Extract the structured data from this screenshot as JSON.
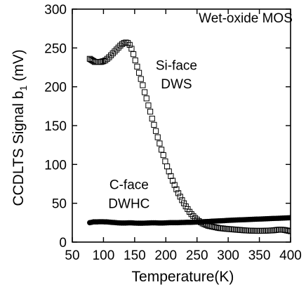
{
  "chart_data": {
    "type": "scatter",
    "title": "",
    "xlabel": "Temperature(K)",
    "ylabel": "CCDLTS Signal b",
    "ylabel_subscript": "1",
    "ylabel_unit": " (mV)",
    "xlim": [
      50,
      400
    ],
    "ylim": [
      0,
      300
    ],
    "xticks": [
      50,
      100,
      150,
      200,
      250,
      300,
      350,
      400
    ],
    "yticks": [
      0,
      50,
      100,
      150,
      200,
      250,
      300
    ],
    "xtick_labels": [
      "50",
      "100",
      "150",
      "200",
      "250",
      "300",
      "350",
      "400"
    ],
    "ytick_labels": [
      "0",
      "50",
      "100",
      "150",
      "200",
      "250",
      "300"
    ],
    "grid": false,
    "annotations": [
      {
        "text": "Wet-oxide MOS",
        "x": 328,
        "y": 283
      },
      {
        "text": "Si-face",
        "x": 217,
        "y": 222
      },
      {
        "text": "DWS",
        "x": 217,
        "y": 198
      },
      {
        "text": "C-face",
        "x": 141,
        "y": 68
      },
      {
        "text": "DWHC",
        "x": 141,
        "y": 44
      }
    ],
    "series": [
      {
        "name": "",
        "marker": "open-square",
        "x": [
          78,
          80,
          82,
          84,
          86,
          88,
          90,
          92,
          94,
          96,
          98,
          100,
          103,
          106,
          109,
          112,
          115,
          118,
          121,
          124,
          127,
          130,
          133,
          136,
          139,
          142,
          145,
          148,
          151,
          154,
          157,
          160,
          163,
          166,
          169,
          172,
          175,
          178,
          181,
          184,
          187,
          190,
          193,
          196,
          199,
          202,
          205,
          208,
          211,
          214,
          217,
          220,
          223,
          226,
          229,
          232,
          235,
          238,
          241,
          244,
          247,
          250,
          253,
          256,
          259,
          262,
          265,
          268,
          271,
          274,
          277,
          280,
          283,
          286,
          289,
          292,
          295,
          298,
          301,
          304,
          307,
          310,
          313,
          316,
          319,
          322,
          325,
          328,
          331,
          334,
          337,
          340,
          343,
          346,
          349,
          352,
          355,
          358,
          361,
          364,
          367,
          370,
          373,
          376,
          379,
          382,
          385,
          388,
          391,
          394,
          397,
          400
        ],
        "y": [
          236,
          235,
          234,
          233,
          232,
          232,
          232,
          232,
          232,
          232,
          232.5,
          233,
          234,
          236,
          238,
          240.5,
          243,
          245.5,
          248,
          250.5,
          253,
          255,
          256.5,
          257,
          256.5,
          254,
          249,
          242,
          234,
          226,
          218,
          210,
          202,
          193,
          185,
          176,
          168,
          159,
          151,
          143,
          135,
          127,
          119,
          112,
          104,
          97.5,
          91,
          85,
          79,
          73.5,
          68,
          63,
          58.5,
          54,
          50,
          46,
          42.5,
          39,
          36,
          33.5,
          31,
          29,
          27,
          25.5,
          24,
          23,
          22,
          21,
          20.5,
          20,
          19.5,
          19,
          18.5,
          18,
          17.8,
          17.5,
          17.2,
          17,
          16.8,
          16.6,
          16.4,
          16.2,
          16,
          15.8,
          15.6,
          15.4,
          15.2,
          15,
          14.9,
          14.8,
          14.7,
          14.6,
          14.5,
          14.5,
          14.5,
          14.5,
          14.5,
          14.6,
          14.7,
          14.8,
          14.9,
          15,
          15.2,
          15.5,
          15.8,
          16,
          16,
          15.8,
          15.5,
          15,
          14.5,
          14
        ]
      },
      {
        "name": "",
        "marker": "filled-circle",
        "x": [
          78,
          81,
          84,
          87,
          90,
          93,
          96,
          99,
          102,
          105,
          108,
          111,
          114,
          117,
          120,
          123,
          126,
          129,
          132,
          135,
          138,
          141,
          144,
          147,
          150,
          153,
          156,
          159,
          162,
          165,
          168,
          171,
          174,
          177,
          180,
          183,
          186,
          189,
          192,
          195,
          198,
          201,
          204,
          207,
          210,
          213,
          216,
          219,
          222,
          225,
          228,
          231,
          234,
          237,
          240,
          243,
          246,
          249,
          252,
          255,
          258,
          261,
          264,
          267,
          270,
          273,
          276,
          279,
          282,
          285,
          288,
          291,
          294,
          297,
          300,
          303,
          306,
          309,
          312,
          315,
          318,
          321,
          324,
          327,
          330,
          333,
          336,
          339,
          342,
          345,
          348,
          351,
          354,
          357,
          360,
          363,
          366,
          369,
          372,
          375,
          378,
          381,
          384,
          387,
          390,
          393,
          396,
          399
        ],
        "y": [
          25.0,
          25.5,
          26.0,
          26.0,
          26.0,
          26.2,
          26.2,
          26.2,
          26.0,
          26.0,
          25.8,
          25.6,
          25.4,
          25.2,
          25.0,
          24.8,
          24.7,
          24.6,
          24.6,
          24.6,
          24.7,
          24.8,
          24.8,
          24.7,
          24.5,
          24.4,
          24.3,
          24.3,
          24.3,
          24.4,
          24.5,
          24.6,
          24.7,
          24.8,
          24.8,
          24.8,
          24.7,
          24.6,
          24.6,
          24.6,
          24.7,
          24.8,
          24.9,
          25.0,
          25.0,
          25.0,
          25.0,
          25.0,
          25.1,
          25.2,
          25.3,
          25.4,
          25.5,
          25.5,
          25.5,
          25.6,
          25.7,
          25.8,
          26.0,
          26.1,
          26.2,
          26.3,
          26.4,
          26.5,
          26.6,
          26.8,
          27.0,
          27.1,
          27.2,
          27.3,
          27.4,
          27.5,
          27.6,
          27.8,
          28.0,
          28.1,
          28.2,
          28.3,
          28.4,
          28.5,
          28.6,
          28.7,
          28.8,
          28.9,
          29.0,
          29.1,
          29.2,
          29.3,
          29.4,
          29.5,
          29.6,
          29.7,
          29.8,
          29.9,
          30.0,
          30.1,
          30.2,
          30.3,
          30.4,
          30.5,
          30.6,
          30.7,
          30.8,
          30.9,
          31.0,
          31.1,
          31.2,
          31.3
        ]
      }
    ]
  }
}
